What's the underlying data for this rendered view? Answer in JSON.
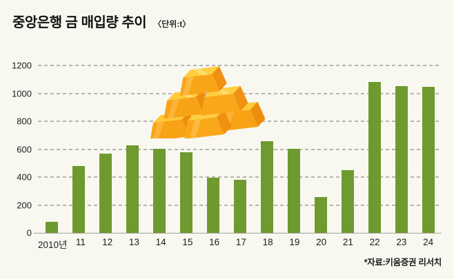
{
  "header": {
    "title": "중앙은행 금 매입량 추이",
    "unit": "〈단위:t〉"
  },
  "footer": {
    "source": "*자료:키움증권 리서치"
  },
  "chart_data": {
    "type": "bar",
    "title": "중앙은행 금 매입량 추이",
    "unit_label": "〈단위:t〉",
    "categories": [
      "2010년",
      "11",
      "12",
      "13",
      "14",
      "15",
      "16",
      "17",
      "18",
      "19",
      "20",
      "21",
      "22",
      "23",
      "24"
    ],
    "values": [
      79,
      481,
      569,
      629,
      601,
      580,
      395,
      379,
      656,
      605,
      255,
      450,
      1082,
      1051,
      1045
    ],
    "xlabel": "",
    "ylabel": "",
    "ylim": [
      0,
      1200
    ],
    "yticks": [
      0,
      200,
      400,
      600,
      800,
      1000,
      1200
    ],
    "grid": "horizontal-dashed",
    "legend": "none",
    "bar_color": "#6f9a2f",
    "background_color": "#f8f8f1",
    "gridline_color": "#b4b4ab",
    "decoration": "gold-bars-illustration",
    "source": "*자료:키움증권 리서치"
  }
}
